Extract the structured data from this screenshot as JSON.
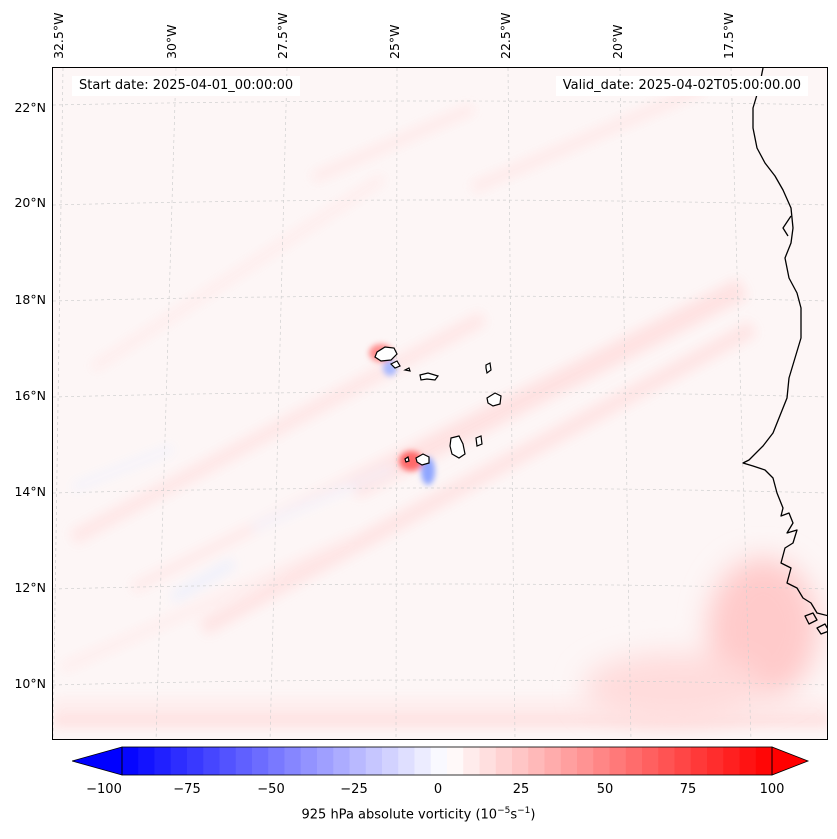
{
  "header": {
    "start_date": "Start date: 2025-04-01_00:00:00",
    "valid_date": "Valid_date: 2025-04-02T05:00:00.00"
  },
  "longitude_labels": [
    "32.5°W",
    "30°W",
    "27.5°W",
    "25°W",
    "22.5°W",
    "20°W",
    "17.5°W"
  ],
  "latitude_labels": [
    "22°N",
    "20°N",
    "18°N",
    "16°N",
    "14°N",
    "12°N",
    "10°N"
  ],
  "colorbar": {
    "ticks": [
      "−100",
      "−75",
      "−50",
      "−25",
      "0",
      "25",
      "50",
      "75",
      "100"
    ],
    "min": -100,
    "max": 100,
    "levels": 40,
    "colormap": "bwr",
    "extend": "both",
    "label_prefix": "925 hPa absolute vorticity (10",
    "label_exp1": "−5",
    "label_mid": "s",
    "label_exp2": "−1",
    "label_suffix": ")"
  },
  "colors": {
    "negative": "#0000ff",
    "zero": "#ffffff",
    "positive": "#ff0000",
    "coastline": "#000000",
    "gridline": "#c8c8c8"
  }
}
